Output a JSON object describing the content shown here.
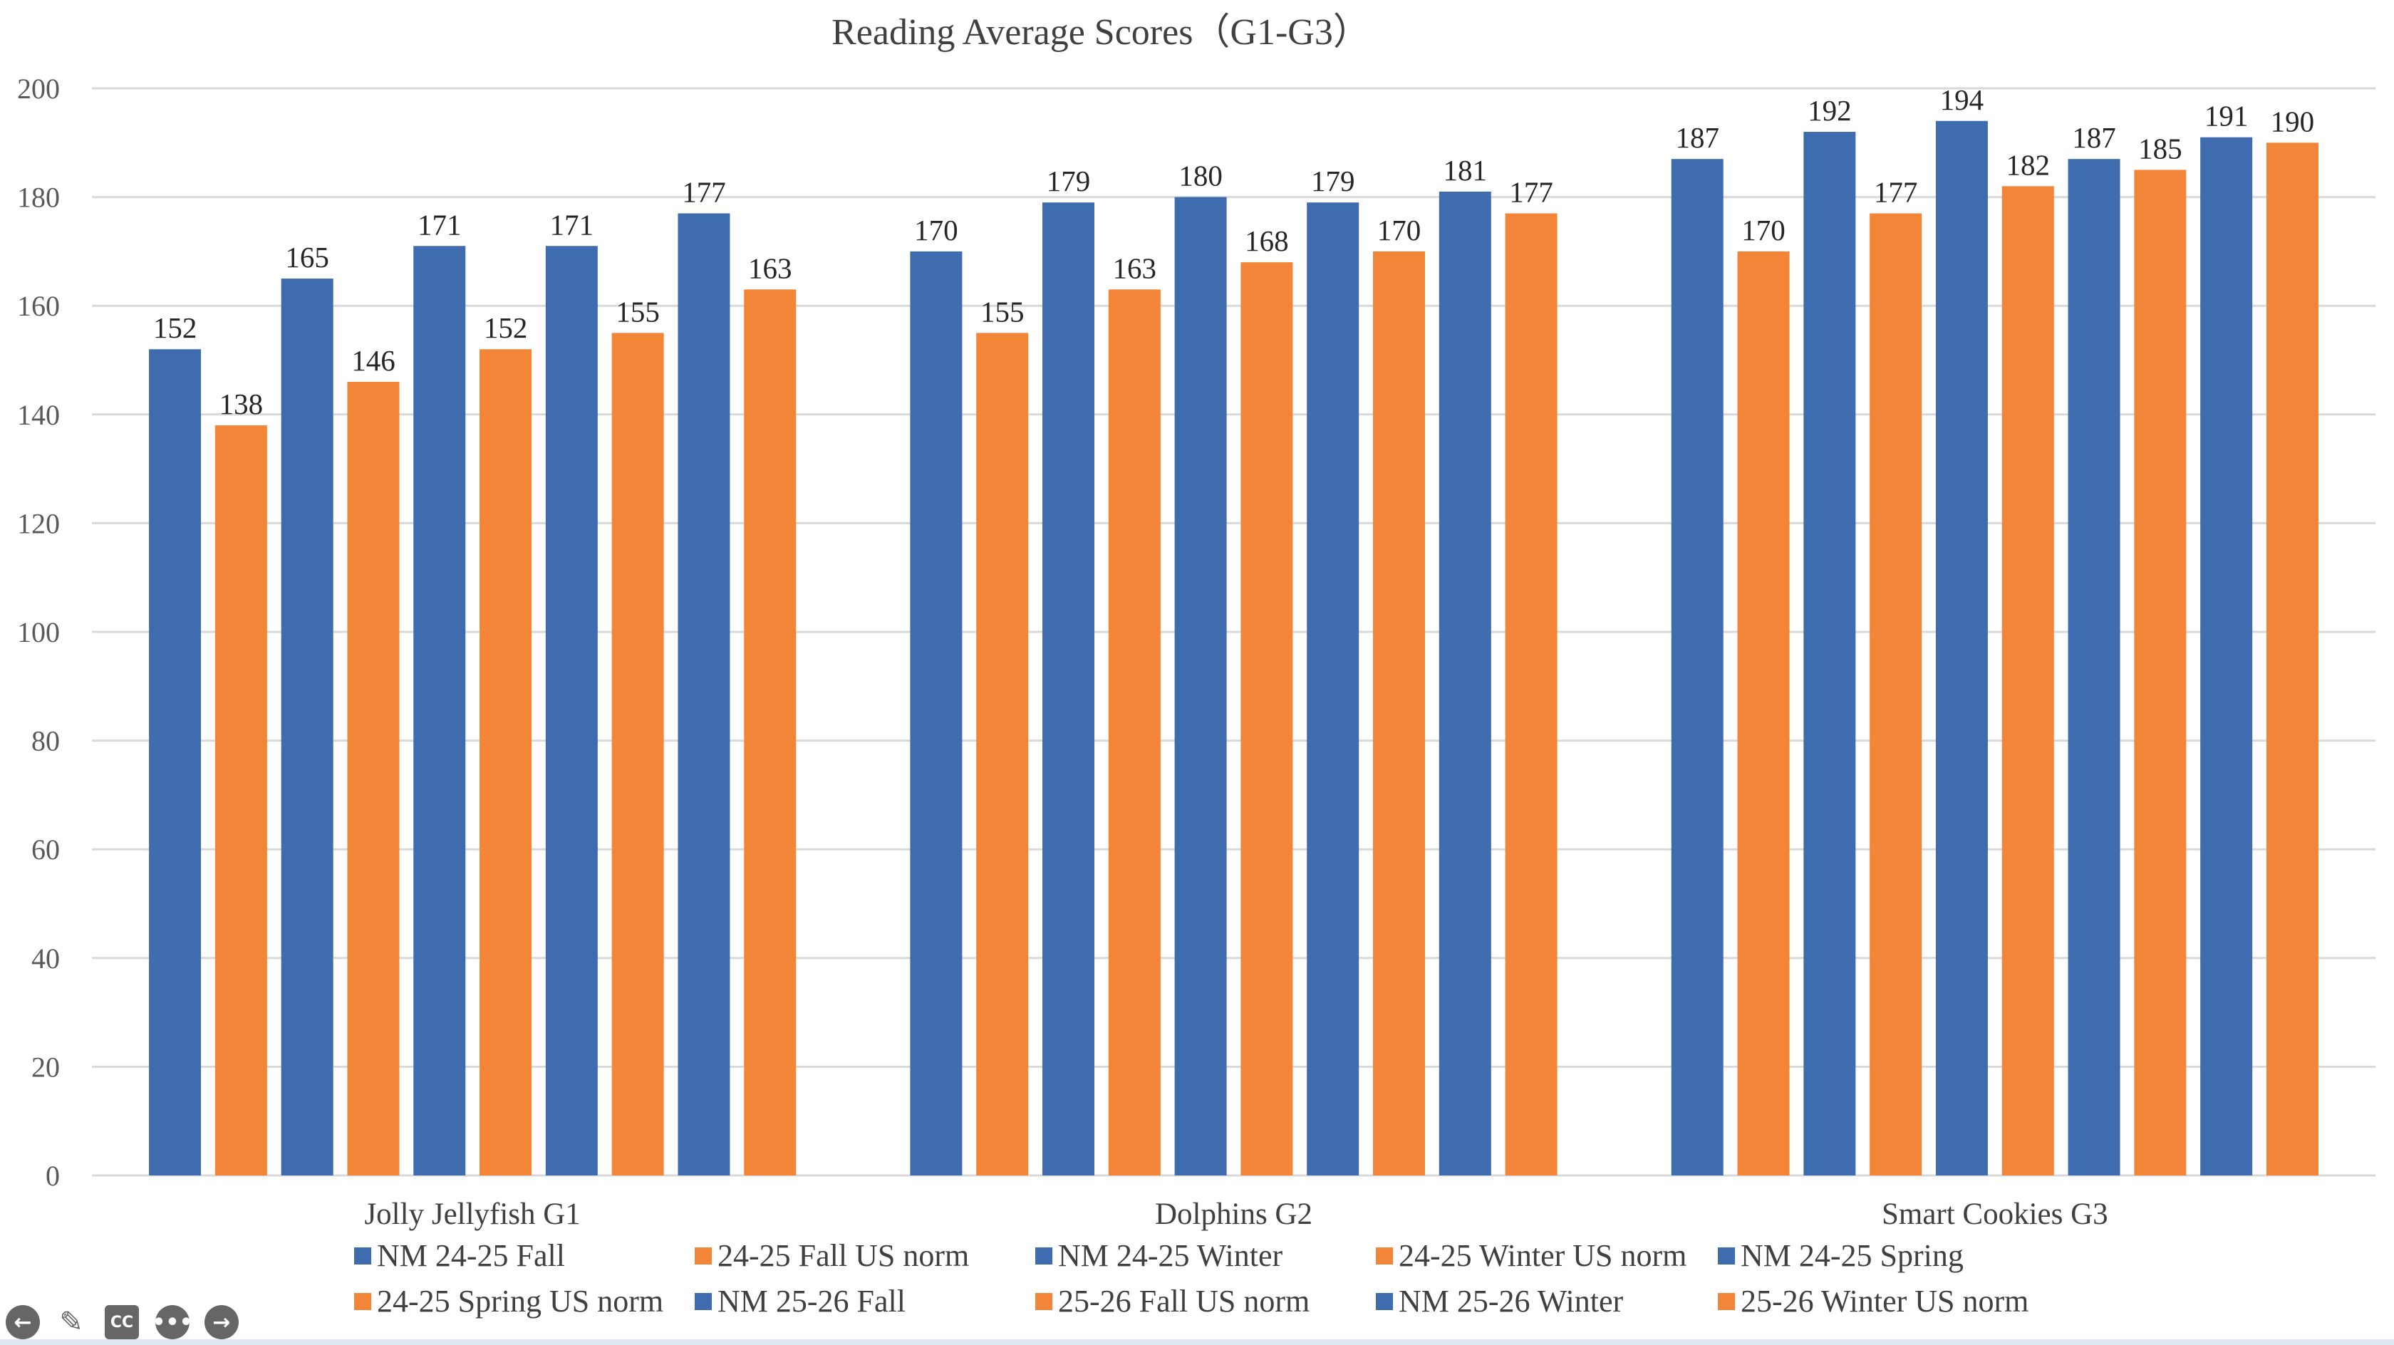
{
  "chart_data": {
    "type": "bar",
    "title": "Reading Average Scores（G1-G3）",
    "xlabel": "",
    "ylabel": "",
    "ylim": [
      0,
      200
    ],
    "yticks": [
      0,
      20,
      40,
      60,
      80,
      100,
      120,
      140,
      160,
      180,
      200
    ],
    "grid": true,
    "legend": "bottom",
    "categories": [
      "Jolly Jellyfish G1",
      "Dolphins G2",
      "Smart Cookies G3"
    ],
    "series": [
      {
        "name": "NM 24-25 Fall",
        "color": "#3F6CAF",
        "values": [
          152,
          170,
          187
        ]
      },
      {
        "name": "24-25 Fall US norm",
        "color": "#F28538",
        "values": [
          138,
          155,
          170
        ]
      },
      {
        "name": "NM 24-25 Winter",
        "color": "#3F6CAF",
        "values": [
          165,
          179,
          192
        ]
      },
      {
        "name": "24-25 Winter US norm",
        "color": "#F28538",
        "values": [
          146,
          163,
          177
        ]
      },
      {
        "name": "NM 24-25 Spring",
        "color": "#3F6CAF",
        "values": [
          171,
          180,
          194
        ]
      },
      {
        "name": "24-25 Spring US norm",
        "color": "#F28538",
        "values": [
          152,
          168,
          182
        ]
      },
      {
        "name": "NM 25-26 Fall",
        "color": "#3F6CAF",
        "values": [
          171,
          179,
          187
        ]
      },
      {
        "name": "25-26 Fall US norm",
        "color": "#F28538",
        "values": [
          155,
          170,
          185
        ]
      },
      {
        "name": "NM 25-26 Winter",
        "color": "#3F6CAF",
        "values": [
          177,
          181,
          191
        ]
      },
      {
        "name": "25-26 Winter US norm",
        "color": "#F28538",
        "values": [
          163,
          177,
          190
        ]
      }
    ]
  },
  "controls": {
    "back_icon": "arrow-left-circle",
    "pen_icon": "pencil",
    "cc_label": "CC",
    "more_icon": "ellipsis-circle",
    "next_icon": "arrow-right-circle"
  }
}
